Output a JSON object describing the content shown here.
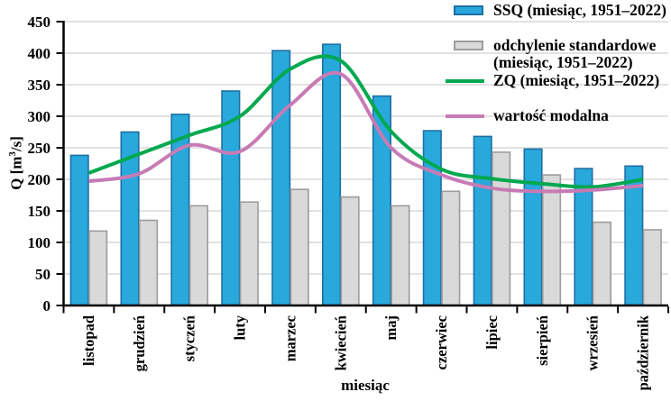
{
  "legend": {
    "items": [
      {
        "lines": [
          "SSQ (miesiąc, 1951–2022)"
        ]
      },
      {
        "lines": [
          "odchylenie standardowe",
          "(miesiąc, 1951–2022)"
        ]
      },
      {
        "lines": [
          "ZQ (miesiąc, 1951–2022)"
        ]
      },
      {
        "lines": [
          "wartość modalna"
        ]
      }
    ]
  },
  "axes": {
    "x_title": "miesiąc",
    "y_title_pre": "Q [m",
    "y_title_sup": "3",
    "y_title_post": "/s]"
  },
  "chart_data": {
    "type": "combo",
    "title": "",
    "categories": [
      "listopad",
      "grudzień",
      "styczeń",
      "luty",
      "marzec",
      "kwiecień",
      "maj",
      "czerwiec",
      "lipiec",
      "sierpień",
      "wrzesień",
      "październik"
    ],
    "series": [
      {
        "name": "SSQ (miesiąc, 1951–2022)",
        "type": "bar",
        "color": "#29A8DC",
        "border": "#1D6FA3",
        "values": [
          238,
          275,
          303,
          340,
          404,
          414,
          332,
          277,
          268,
          248,
          217,
          221
        ]
      },
      {
        "name": "odchylenie standardowe (miesiąc, 1951–2022)",
        "type": "bar",
        "color": "#D9D9D9",
        "border": "#9C9C9C",
        "values": [
          118,
          135,
          158,
          164,
          184,
          172,
          158,
          181,
          243,
          207,
          132,
          120
        ]
      },
      {
        "name": "ZQ (miesiąc, 1951–2022)",
        "type": "line",
        "color": "#00A84F",
        "values": [
          210,
          240,
          270,
          300,
          375,
          388,
          276,
          216,
          201,
          193,
          188,
          200
        ]
      },
      {
        "name": "wartość modalna",
        "type": "line",
        "color": "#C77BB5",
        "values": [
          197,
          209,
          254,
          244,
          318,
          367,
          250,
          207,
          186,
          181,
          183,
          190
        ]
      }
    ],
    "xlabel": "miesiąc",
    "ylabel": "Q [m³/s]",
    "ylim": [
      0,
      450
    ],
    "y_ticks": [
      0,
      50,
      100,
      150,
      200,
      250,
      300,
      350,
      400,
      450
    ],
    "grid": "horizontal",
    "legend_position": "top-right",
    "smooth_lines": true,
    "colors": {
      "grid": "#D9D9D9",
      "axis": "#000000",
      "text": "#000000"
    }
  }
}
